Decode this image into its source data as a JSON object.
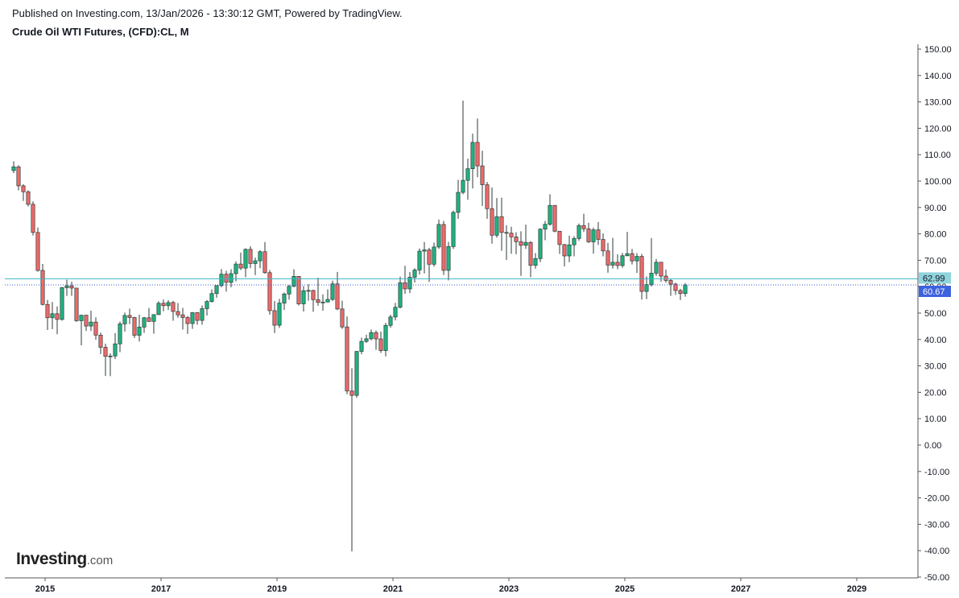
{
  "header": {
    "published": "Published on Investing.com, 13/Jan/2026 - 13:30:12 GMT, Powered by TradingView.",
    "title": "Crude Oil WTI Futures, (CFD):CL, M"
  },
  "logo": {
    "brand": "Investing",
    "suffix": ".com"
  },
  "colors": {
    "up": "#26a69a",
    "down": "#ef5350",
    "wick": "#2f3b3a",
    "up_fill": "#1fb47e",
    "down_fill": "#ef6a6a",
    "price_line_prev": "#3ab4c8",
    "price_line_last": "#3a5bd9",
    "tag_prev": "#8fd3dc",
    "tag_last": "#3d62e0"
  },
  "price_labels": {
    "prev_close": "62.99",
    "last": "60.67"
  },
  "chart_data": {
    "type": "candlestick",
    "title": "Crude Oil WTI Futures, (CFD):CL, M",
    "interval": "monthly",
    "ylim": [
      -50,
      150
    ],
    "y_ticks": [
      "150.00",
      "140.00",
      "130.00",
      "120.00",
      "110.00",
      "100.00",
      "90.00",
      "80.00",
      "70.00",
      "60.00",
      "50.00",
      "40.00",
      "30.00",
      "20.00",
      "10.00",
      "0.00",
      "-10.00",
      "-20.00",
      "-30.00",
      "-40.00",
      "-50.00"
    ],
    "y_tick_values": [
      150,
      140,
      130,
      120,
      110,
      100,
      90,
      80,
      70,
      60,
      50,
      40,
      30,
      20,
      10,
      0,
      -10,
      -20,
      -30,
      -40,
      -50
    ],
    "x_ticks": [
      "2015",
      "2017",
      "2019",
      "2021",
      "2023",
      "2025",
      "2027",
      "2029"
    ],
    "x_tick_times": [
      2015.0,
      2017.0,
      2019.0,
      2021.0,
      2023.0,
      2025.0,
      2027.0,
      2029.0
    ],
    "xlim": [
      2014.33,
      2030.0
    ],
    "reference_lines": {
      "prev_close": 62.99,
      "last": 60.67
    },
    "candles": [
      {
        "t": "2014-06",
        "o": 104,
        "h": 107.5,
        "l": 103,
        "c": 105.4
      },
      {
        "t": "2014-07",
        "o": 105.4,
        "h": 106,
        "l": 96.5,
        "c": 98.2
      },
      {
        "t": "2014-08",
        "o": 98.2,
        "h": 98.8,
        "l": 92.5,
        "c": 95.96
      },
      {
        "t": "2014-09",
        "o": 95.96,
        "h": 96.5,
        "l": 90.4,
        "c": 91.2
      },
      {
        "t": "2014-10",
        "o": 91.2,
        "h": 92.3,
        "l": 79.4,
        "c": 80.54
      },
      {
        "t": "2014-11",
        "o": 80.54,
        "h": 82.4,
        "l": 65.7,
        "c": 66.15
      },
      {
        "t": "2014-12",
        "o": 66.15,
        "h": 68.6,
        "l": 52.9,
        "c": 53.27
      },
      {
        "t": "2015-01",
        "o": 53.27,
        "h": 55,
        "l": 43.6,
        "c": 48.24
      },
      {
        "t": "2015-02",
        "o": 48.24,
        "h": 54.2,
        "l": 43.9,
        "c": 49.76
      },
      {
        "t": "2015-03",
        "o": 49.76,
        "h": 52.5,
        "l": 42,
        "c": 47.6
      },
      {
        "t": "2015-04",
        "o": 47.6,
        "h": 59.9,
        "l": 47.1,
        "c": 59.63
      },
      {
        "t": "2015-05",
        "o": 59.63,
        "h": 62.6,
        "l": 56.5,
        "c": 60.3
      },
      {
        "t": "2015-06",
        "o": 60.3,
        "h": 61.9,
        "l": 56.5,
        "c": 59.47
      },
      {
        "t": "2015-07",
        "o": 59.47,
        "h": 59.6,
        "l": 46.7,
        "c": 47.12
      },
      {
        "t": "2015-08",
        "o": 47.12,
        "h": 49.3,
        "l": 37.75,
        "c": 49.2
      },
      {
        "t": "2015-09",
        "o": 49.2,
        "h": 49.3,
        "l": 43.2,
        "c": 45.09
      },
      {
        "t": "2015-10",
        "o": 45.09,
        "h": 50.9,
        "l": 43.2,
        "c": 46.59
      },
      {
        "t": "2015-11",
        "o": 46.59,
        "h": 48.4,
        "l": 39.9,
        "c": 41.65
      },
      {
        "t": "2015-12",
        "o": 41.65,
        "h": 42.6,
        "l": 34.5,
        "c": 37.04
      },
      {
        "t": "2016-01",
        "o": 37.04,
        "h": 38.4,
        "l": 26.2,
        "c": 33.62
      },
      {
        "t": "2016-02",
        "o": 33.62,
        "h": 34.8,
        "l": 26.1,
        "c": 33.75
      },
      {
        "t": "2016-03",
        "o": 33.75,
        "h": 42.4,
        "l": 32.6,
        "c": 38.34
      },
      {
        "t": "2016-04",
        "o": 38.34,
        "h": 46.8,
        "l": 35.2,
        "c": 45.92
      },
      {
        "t": "2016-05",
        "o": 45.92,
        "h": 50.2,
        "l": 43,
        "c": 49.1
      },
      {
        "t": "2016-06",
        "o": 49.1,
        "h": 51.7,
        "l": 45.8,
        "c": 48.33
      },
      {
        "t": "2016-07",
        "o": 48.33,
        "h": 48.6,
        "l": 40.6,
        "c": 41.6
      },
      {
        "t": "2016-08",
        "o": 41.6,
        "h": 49.4,
        "l": 39.2,
        "c": 44.7
      },
      {
        "t": "2016-09",
        "o": 44.7,
        "h": 48.5,
        "l": 42.5,
        "c": 48.24
      },
      {
        "t": "2016-10",
        "o": 48.24,
        "h": 51.9,
        "l": 46.6,
        "c": 46.86
      },
      {
        "t": "2016-11",
        "o": 46.86,
        "h": 49.5,
        "l": 42.2,
        "c": 49.44
      },
      {
        "t": "2016-12",
        "o": 49.44,
        "h": 54.5,
        "l": 49.3,
        "c": 53.72
      },
      {
        "t": "2017-01",
        "o": 53.72,
        "h": 55.2,
        "l": 50.7,
        "c": 52.81
      },
      {
        "t": "2017-02",
        "o": 52.81,
        "h": 54.9,
        "l": 51.2,
        "c": 54.01
      },
      {
        "t": "2017-03",
        "o": 54.01,
        "h": 54.6,
        "l": 47.1,
        "c": 50.6
      },
      {
        "t": "2017-04",
        "o": 50.6,
        "h": 53.8,
        "l": 48.2,
        "c": 49.33
      },
      {
        "t": "2017-05",
        "o": 49.33,
        "h": 52,
        "l": 43.8,
        "c": 48.32
      },
      {
        "t": "2017-06",
        "o": 48.32,
        "h": 48.9,
        "l": 42.1,
        "c": 46.04
      },
      {
        "t": "2017-07",
        "o": 46.04,
        "h": 50.4,
        "l": 44,
        "c": 50.17
      },
      {
        "t": "2017-08",
        "o": 50.17,
        "h": 50.4,
        "l": 45.6,
        "c": 47.23
      },
      {
        "t": "2017-09",
        "o": 47.23,
        "h": 52.9,
        "l": 45.6,
        "c": 51.67
      },
      {
        "t": "2017-10",
        "o": 51.67,
        "h": 54.9,
        "l": 49.1,
        "c": 54.38
      },
      {
        "t": "2017-11",
        "o": 54.38,
        "h": 59,
        "l": 54,
        "c": 57.4
      },
      {
        "t": "2017-12",
        "o": 57.4,
        "h": 60.5,
        "l": 55.8,
        "c": 60.42
      },
      {
        "t": "2018-01",
        "o": 60.42,
        "h": 66.7,
        "l": 59.8,
        "c": 64.73
      },
      {
        "t": "2018-02",
        "o": 64.73,
        "h": 66,
        "l": 58.1,
        "c": 61.64
      },
      {
        "t": "2018-03",
        "o": 61.64,
        "h": 66.6,
        "l": 59.8,
        "c": 64.94
      },
      {
        "t": "2018-04",
        "o": 64.94,
        "h": 69.6,
        "l": 62,
        "c": 68.57
      },
      {
        "t": "2018-05",
        "o": 68.57,
        "h": 72.9,
        "l": 66.3,
        "c": 67.04
      },
      {
        "t": "2018-06",
        "o": 67.04,
        "h": 74.5,
        "l": 63.6,
        "c": 74.15
      },
      {
        "t": "2018-07",
        "o": 74.15,
        "h": 75.3,
        "l": 67,
        "c": 68.76
      },
      {
        "t": "2018-08",
        "o": 68.76,
        "h": 71,
        "l": 64.4,
        "c": 69.8
      },
      {
        "t": "2018-09",
        "o": 69.8,
        "h": 73.8,
        "l": 67,
        "c": 73.25
      },
      {
        "t": "2018-10",
        "o": 73.25,
        "h": 76.9,
        "l": 64.9,
        "c": 65.31
      },
      {
        "t": "2018-11",
        "o": 65.31,
        "h": 66.3,
        "l": 49.4,
        "c": 50.93
      },
      {
        "t": "2018-12",
        "o": 50.93,
        "h": 54.6,
        "l": 42.4,
        "c": 45.41
      },
      {
        "t": "2019-01",
        "o": 45.41,
        "h": 55.4,
        "l": 44.4,
        "c": 53.79
      },
      {
        "t": "2019-02",
        "o": 53.79,
        "h": 57.8,
        "l": 51.2,
        "c": 57.22
      },
      {
        "t": "2019-03",
        "o": 57.22,
        "h": 60.7,
        "l": 55.1,
        "c": 60.14
      },
      {
        "t": "2019-04",
        "o": 60.14,
        "h": 66.6,
        "l": 59.8,
        "c": 63.91
      },
      {
        "t": "2019-05",
        "o": 63.91,
        "h": 63.9,
        "l": 52.9,
        "c": 53.5
      },
      {
        "t": "2019-06",
        "o": 53.5,
        "h": 60.3,
        "l": 50.6,
        "c": 58.47
      },
      {
        "t": "2019-07",
        "o": 58.47,
        "h": 60.9,
        "l": 54.7,
        "c": 58.58
      },
      {
        "t": "2019-08",
        "o": 58.58,
        "h": 58.8,
        "l": 50.5,
        "c": 55.1
      },
      {
        "t": "2019-09",
        "o": 55.1,
        "h": 63.4,
        "l": 52.8,
        "c": 54.07
      },
      {
        "t": "2019-10",
        "o": 54.07,
        "h": 57.1,
        "l": 50.9,
        "c": 54.18
      },
      {
        "t": "2019-11",
        "o": 54.18,
        "h": 59,
        "l": 54.1,
        "c": 55.17
      },
      {
        "t": "2019-12",
        "o": 55.17,
        "h": 62.3,
        "l": 54.6,
        "c": 61.06
      },
      {
        "t": "2020-01",
        "o": 61.06,
        "h": 65.6,
        "l": 51.1,
        "c": 51.56
      },
      {
        "t": "2020-02",
        "o": 51.56,
        "h": 54.7,
        "l": 44,
        "c": 44.76
      },
      {
        "t": "2020-03",
        "o": 44.76,
        "h": 48.7,
        "l": 19.3,
        "c": 20.48
      },
      {
        "t": "2020-04",
        "o": 20.48,
        "h": 29.1,
        "l": -40.3,
        "c": 18.84
      },
      {
        "t": "2020-05",
        "o": 18.84,
        "h": 35.6,
        "l": 17.9,
        "c": 35.49
      },
      {
        "t": "2020-06",
        "o": 35.49,
        "h": 40.7,
        "l": 34.4,
        "c": 39.27
      },
      {
        "t": "2020-07",
        "o": 39.27,
        "h": 41.8,
        "l": 38.7,
        "c": 40.27
      },
      {
        "t": "2020-08",
        "o": 40.27,
        "h": 43.8,
        "l": 39.7,
        "c": 42.61
      },
      {
        "t": "2020-09",
        "o": 42.61,
        "h": 43.4,
        "l": 36.1,
        "c": 40.22
      },
      {
        "t": "2020-10",
        "o": 40.22,
        "h": 43,
        "l": 34.9,
        "c": 35.79
      },
      {
        "t": "2020-11",
        "o": 35.79,
        "h": 46.3,
        "l": 33.6,
        "c": 45.34
      },
      {
        "t": "2020-12",
        "o": 45.34,
        "h": 49.4,
        "l": 44.4,
        "c": 48.52
      },
      {
        "t": "2021-01",
        "o": 48.52,
        "h": 53.9,
        "l": 47.2,
        "c": 52.2
      },
      {
        "t": "2021-02",
        "o": 52.2,
        "h": 63.8,
        "l": 51.8,
        "c": 61.5
      },
      {
        "t": "2021-03",
        "o": 61.5,
        "h": 67.9,
        "l": 57.3,
        "c": 59.16
      },
      {
        "t": "2021-04",
        "o": 59.16,
        "h": 65.5,
        "l": 57.6,
        "c": 63.58
      },
      {
        "t": "2021-05",
        "o": 63.58,
        "h": 67,
        "l": 61.6,
        "c": 66.32
      },
      {
        "t": "2021-06",
        "o": 66.32,
        "h": 74.5,
        "l": 64.6,
        "c": 73.47
      },
      {
        "t": "2021-07",
        "o": 73.47,
        "h": 76.9,
        "l": 65,
        "c": 73.95
      },
      {
        "t": "2021-08",
        "o": 73.95,
        "h": 74.7,
        "l": 61.8,
        "c": 68.5
      },
      {
        "t": "2021-09",
        "o": 68.5,
        "h": 76.7,
        "l": 67.6,
        "c": 75.03
      },
      {
        "t": "2021-10",
        "o": 75.03,
        "h": 85.4,
        "l": 74.3,
        "c": 83.57
      },
      {
        "t": "2021-11",
        "o": 83.57,
        "h": 84.9,
        "l": 64.4,
        "c": 66.18
      },
      {
        "t": "2021-12",
        "o": 66.18,
        "h": 77,
        "l": 62.4,
        "c": 75.21
      },
      {
        "t": "2022-01",
        "o": 75.21,
        "h": 88.8,
        "l": 74.3,
        "c": 88.15
      },
      {
        "t": "2022-02",
        "o": 88.15,
        "h": 100.5,
        "l": 85.7,
        "c": 95.72
      },
      {
        "t": "2022-03",
        "o": 95.72,
        "h": 130.5,
        "l": 95,
        "c": 100.28
      },
      {
        "t": "2022-04",
        "o": 100.28,
        "h": 108.5,
        "l": 92.9,
        "c": 104.69
      },
      {
        "t": "2022-05",
        "o": 104.69,
        "h": 118,
        "l": 97.2,
        "c": 114.67
      },
      {
        "t": "2022-06",
        "o": 114.67,
        "h": 123.7,
        "l": 101.5,
        "c": 105.76
      },
      {
        "t": "2022-07",
        "o": 105.76,
        "h": 111.5,
        "l": 90.6,
        "c": 98.62
      },
      {
        "t": "2022-08",
        "o": 98.62,
        "h": 99.7,
        "l": 85.7,
        "c": 89.55
      },
      {
        "t": "2022-09",
        "o": 89.55,
        "h": 97.6,
        "l": 76.3,
        "c": 79.49
      },
      {
        "t": "2022-10",
        "o": 79.49,
        "h": 93.6,
        "l": 78.6,
        "c": 86.53
      },
      {
        "t": "2022-11",
        "o": 86.53,
        "h": 93.7,
        "l": 73.6,
        "c": 80.55
      },
      {
        "t": "2022-12",
        "o": 80.55,
        "h": 83.3,
        "l": 70.1,
        "c": 80.26
      },
      {
        "t": "2023-01",
        "o": 80.26,
        "h": 82.7,
        "l": 72.5,
        "c": 78.87
      },
      {
        "t": "2023-02",
        "o": 78.87,
        "h": 80.6,
        "l": 72.3,
        "c": 77.05
      },
      {
        "t": "2023-03",
        "o": 77.05,
        "h": 81,
        "l": 64.1,
        "c": 75.67
      },
      {
        "t": "2023-04",
        "o": 75.67,
        "h": 83.5,
        "l": 74.3,
        "c": 76.78
      },
      {
        "t": "2023-05",
        "o": 76.78,
        "h": 77.2,
        "l": 63.6,
        "c": 68.09
      },
      {
        "t": "2023-06",
        "o": 68.09,
        "h": 72.7,
        "l": 66.8,
        "c": 70.64
      },
      {
        "t": "2023-07",
        "o": 70.64,
        "h": 82.1,
        "l": 69.3,
        "c": 81.8
      },
      {
        "t": "2023-08",
        "o": 81.8,
        "h": 84.9,
        "l": 77.6,
        "c": 83.63
      },
      {
        "t": "2023-09",
        "o": 83.63,
        "h": 95,
        "l": 83.1,
        "c": 90.79
      },
      {
        "t": "2023-10",
        "o": 90.79,
        "h": 90.9,
        "l": 80.6,
        "c": 81.02
      },
      {
        "t": "2023-11",
        "o": 81.02,
        "h": 80.1,
        "l": 72.4,
        "c": 75.96
      },
      {
        "t": "2023-12",
        "o": 75.96,
        "h": 76.2,
        "l": 67.7,
        "c": 71.65
      },
      {
        "t": "2024-01",
        "o": 71.65,
        "h": 79.3,
        "l": 69.3,
        "c": 75.85
      },
      {
        "t": "2024-02",
        "o": 75.85,
        "h": 79.1,
        "l": 71.5,
        "c": 78.26
      },
      {
        "t": "2024-03",
        "o": 78.26,
        "h": 83.9,
        "l": 77.4,
        "c": 83.17
      },
      {
        "t": "2024-04",
        "o": 83.17,
        "h": 87.6,
        "l": 80.7,
        "c": 81.93
      },
      {
        "t": "2024-05",
        "o": 81.93,
        "h": 84.2,
        "l": 76.6,
        "c": 76.99
      },
      {
        "t": "2024-06",
        "o": 76.99,
        "h": 82.4,
        "l": 72.5,
        "c": 81.54
      },
      {
        "t": "2024-07",
        "o": 81.54,
        "h": 84.5,
        "l": 75.8,
        "c": 77.91
      },
      {
        "t": "2024-08",
        "o": 77.91,
        "h": 80.2,
        "l": 71.5,
        "c": 73.55
      },
      {
        "t": "2024-09",
        "o": 73.55,
        "h": 76.6,
        "l": 65.3,
        "c": 68.17
      },
      {
        "t": "2024-10",
        "o": 68.17,
        "h": 78.5,
        "l": 66.9,
        "c": 69.26
      },
      {
        "t": "2024-11",
        "o": 69.26,
        "h": 72.3,
        "l": 66.6,
        "c": 68
      },
      {
        "t": "2024-12",
        "o": 68,
        "h": 72.8,
        "l": 67.2,
        "c": 71.72
      },
      {
        "t": "2025-01",
        "o": 71.72,
        "h": 80.8,
        "l": 71.5,
        "c": 72.53
      },
      {
        "t": "2025-02",
        "o": 72.53,
        "h": 74.3,
        "l": 68.4,
        "c": 69.76
      },
      {
        "t": "2025-03",
        "o": 69.76,
        "h": 72.7,
        "l": 65.2,
        "c": 71.48
      },
      {
        "t": "2025-04",
        "o": 71.48,
        "h": 72.4,
        "l": 55.1,
        "c": 58.21
      },
      {
        "t": "2025-05",
        "o": 58.21,
        "h": 63.9,
        "l": 55.3,
        "c": 60.79
      },
      {
        "t": "2025-06",
        "o": 60.79,
        "h": 78.4,
        "l": 60.1,
        "c": 65.11
      },
      {
        "t": "2025-07",
        "o": 65.11,
        "h": 70.5,
        "l": 64.1,
        "c": 69.26
      },
      {
        "t": "2025-08",
        "o": 69.26,
        "h": 69.4,
        "l": 61.9,
        "c": 64.01
      },
      {
        "t": "2025-09",
        "o": 64.01,
        "h": 66.5,
        "l": 61.5,
        "c": 62.37
      },
      {
        "t": "2025-10",
        "o": 62.37,
        "h": 63,
        "l": 56.5,
        "c": 60.98
      },
      {
        "t": "2025-11",
        "o": 60.98,
        "h": 61.5,
        "l": 56.9,
        "c": 58.55
      },
      {
        "t": "2025-12",
        "o": 58.55,
        "h": 59.2,
        "l": 54.9,
        "c": 57.42
      },
      {
        "t": "2026-01",
        "o": 57.42,
        "h": 61.3,
        "l": 56.2,
        "c": 60.67
      }
    ]
  }
}
